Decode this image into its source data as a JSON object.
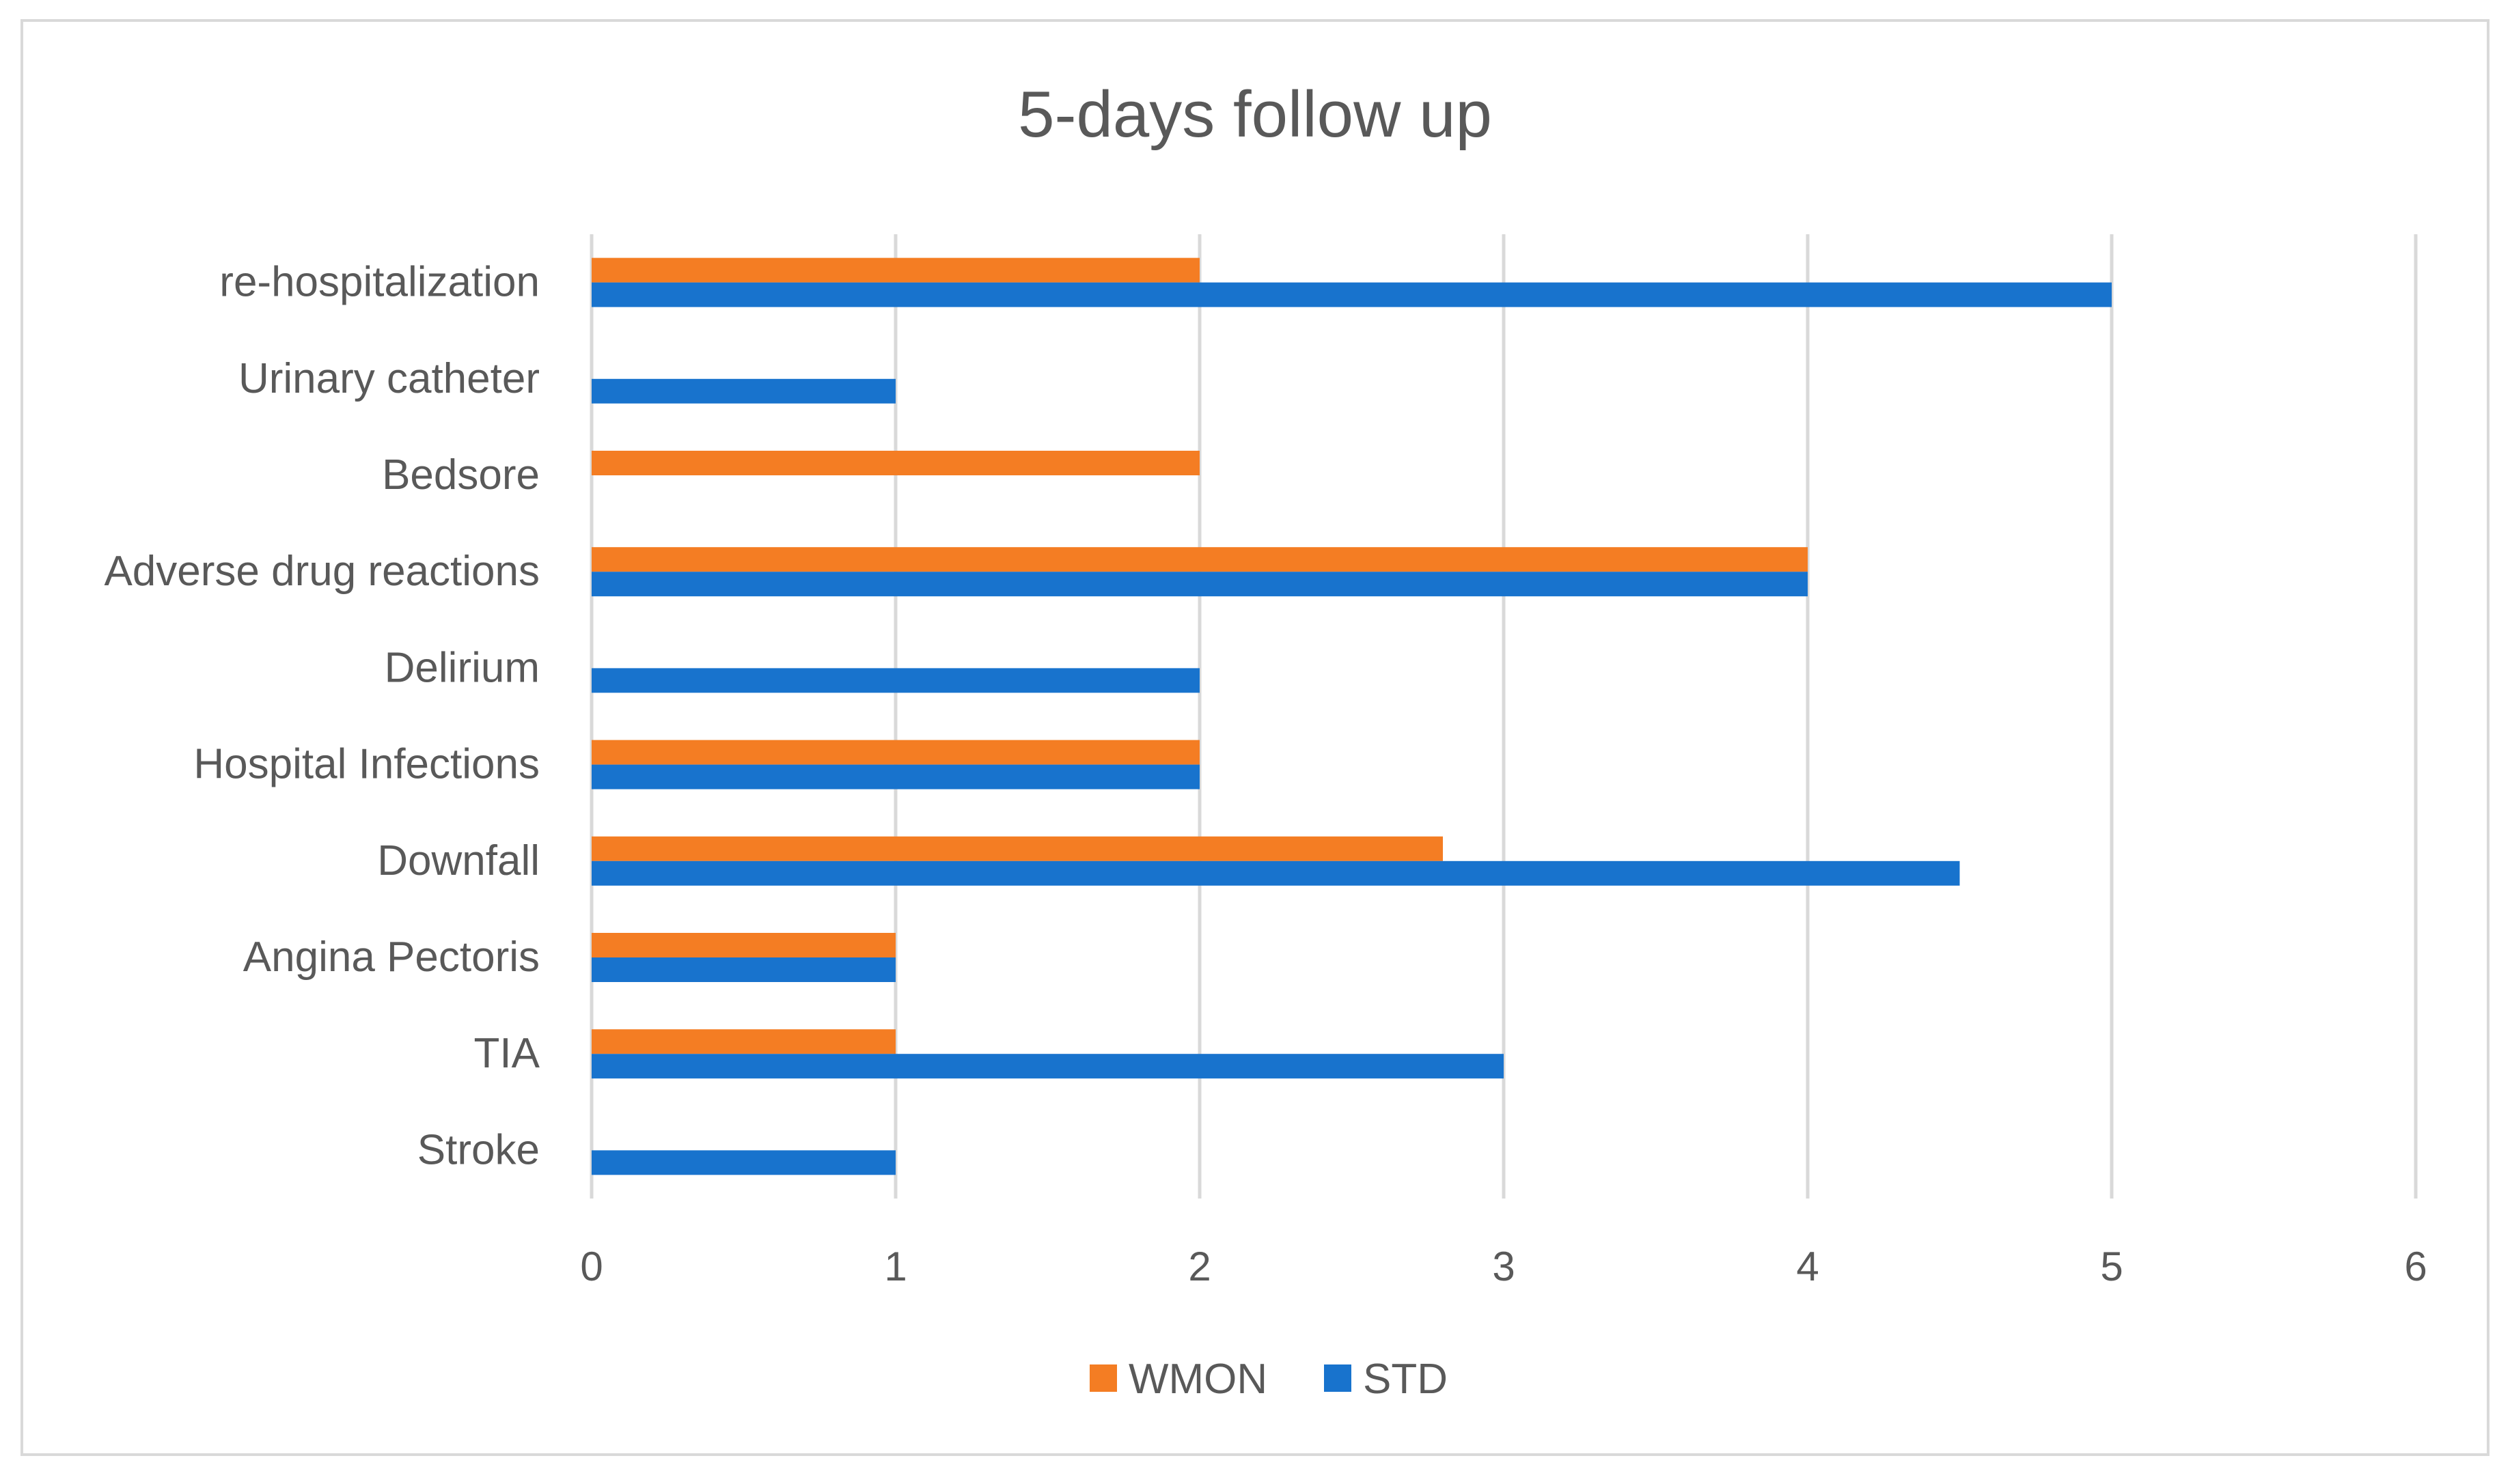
{
  "chart_data": {
    "type": "bar",
    "orientation": "horizontal",
    "title": "5-days follow up",
    "xlabel": "",
    "ylabel": "",
    "categories": [
      "Stroke",
      "TIA",
      "Angina Pectoris",
      "Downfall",
      "Hospital Infections",
      "Delirium",
      "Adverse drug reactions",
      "Bedsore",
      "Urinary catheter",
      "re-hospitalization"
    ],
    "series": [
      {
        "name": "WMON",
        "color": "#f47d23",
        "values": [
          0,
          1,
          1,
          2.8,
          2,
          0,
          4,
          2,
          0,
          2
        ]
      },
      {
        "name": "STD",
        "color": "#1873cd",
        "values": [
          1,
          3,
          1,
          4.5,
          2,
          2,
          4,
          0,
          1,
          5
        ]
      }
    ],
    "xlim": [
      0,
      6
    ],
    "xticks": [
      0,
      1,
      2,
      3,
      4,
      5,
      6
    ],
    "grid": "vertical",
    "legend_position": "bottom"
  }
}
